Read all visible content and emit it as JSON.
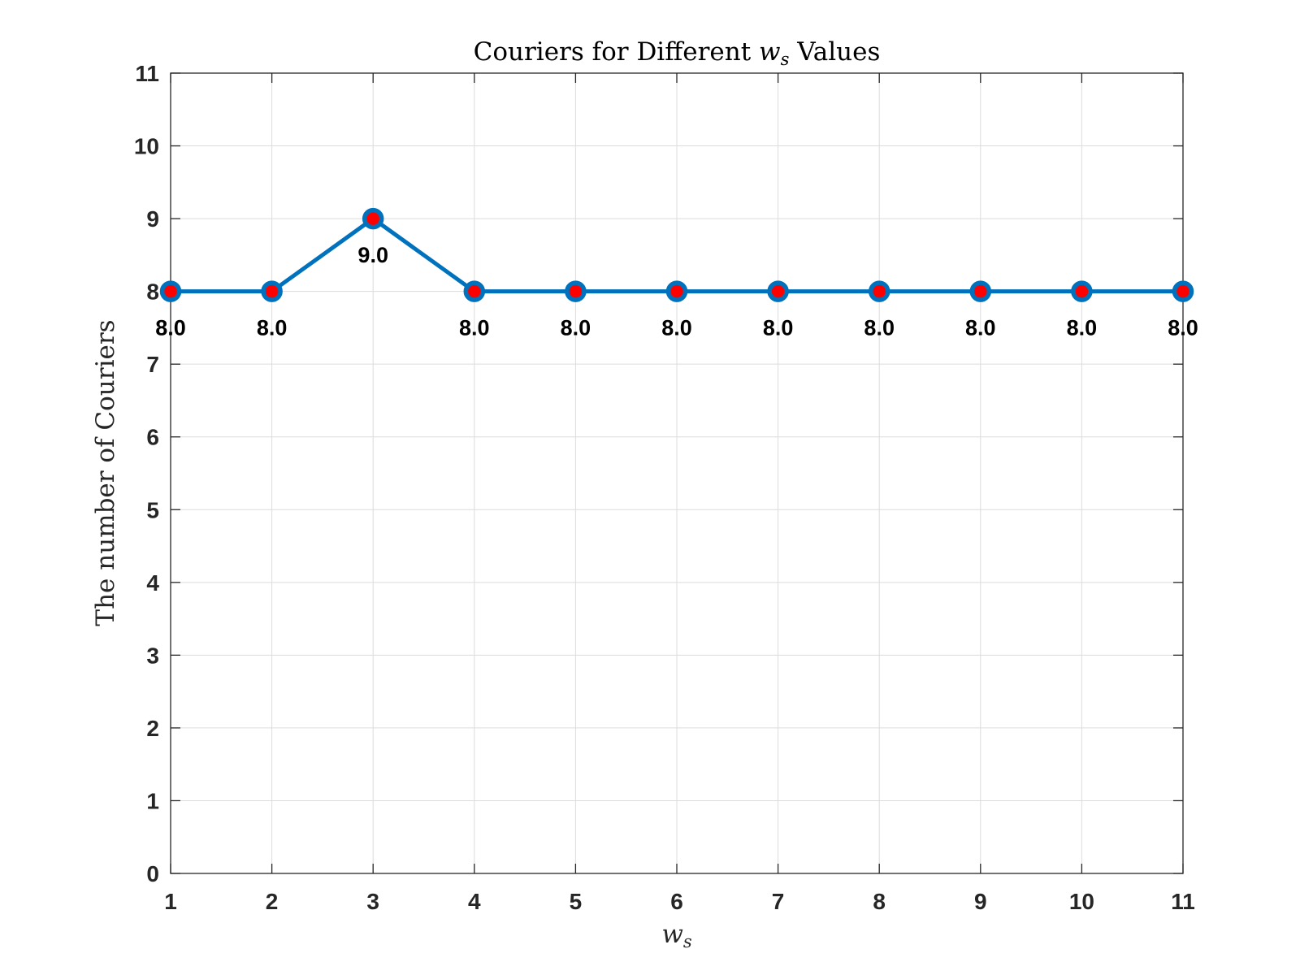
{
  "chart_data": {
    "type": "line",
    "title": {
      "prefix": "Couriers for Different ",
      "symbol": "w",
      "subscript": "s",
      "suffix": " Values"
    },
    "xlabel": {
      "symbol": "w",
      "subscript": "s"
    },
    "ylabel": "The number of Couriers",
    "x": [
      1,
      2,
      3,
      4,
      5,
      6,
      7,
      8,
      9,
      10,
      11
    ],
    "series": [
      {
        "values": [
          8,
          8,
          9,
          8,
          8,
          8,
          8,
          8,
          8,
          8,
          8
        ],
        "data_labels": [
          "8.0",
          "8.0",
          "9.0",
          "8.0",
          "8.0",
          "8.0",
          "8.0",
          "8.0",
          "8.0",
          "8.0",
          "8.0"
        ],
        "line_color": "#0072BD",
        "marker_fill": "#FF0000",
        "marker_edge": "#0072BD"
      }
    ],
    "xlim": [
      1,
      11
    ],
    "ylim": [
      0,
      11
    ],
    "xticks": [
      "1",
      "2",
      "3",
      "4",
      "5",
      "6",
      "7",
      "8",
      "9",
      "10",
      "11"
    ],
    "yticks": [
      "0",
      "1",
      "2",
      "3",
      "4",
      "5",
      "6",
      "7",
      "8",
      "9",
      "10",
      "11"
    ],
    "grid": true,
    "colors": {
      "axis": "#262626",
      "grid": "#DCDCDC"
    }
  }
}
